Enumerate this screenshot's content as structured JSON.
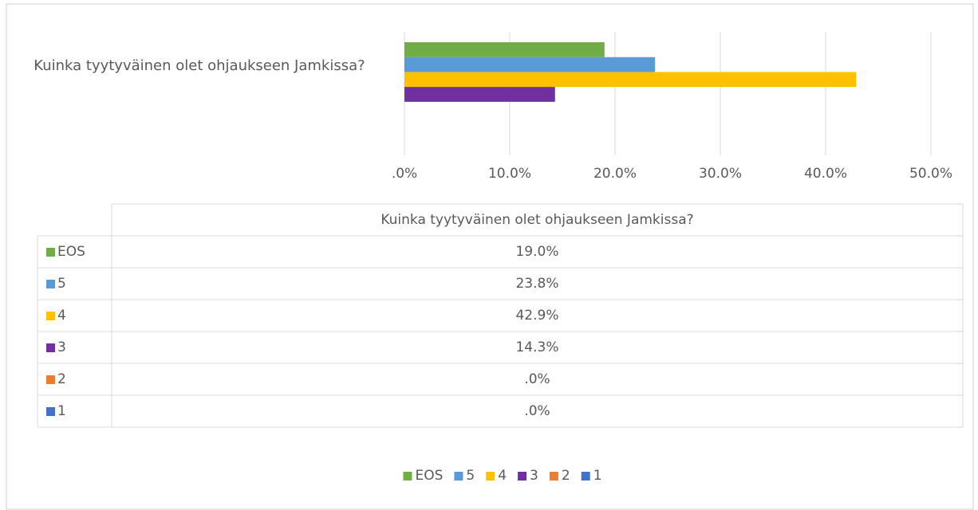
{
  "chart_data": {
    "type": "bar",
    "orientation": "horizontal",
    "categories": [
      "Kuinka tyytyväinen olet ohjaukseen Jamkissa?"
    ],
    "series": [
      {
        "name": "EOS",
        "color": "#70ad47",
        "values": [
          19.0
        ],
        "value_labels": [
          "19.0%"
        ]
      },
      {
        "name": "5",
        "color": "#5b9bd5",
        "values": [
          23.8
        ],
        "value_labels": [
          "23.8%"
        ]
      },
      {
        "name": "4",
        "color": "#ffc000",
        "values": [
          42.9
        ],
        "value_labels": [
          "42.9%"
        ]
      },
      {
        "name": "3",
        "color": "#7030a0",
        "values": [
          14.3
        ],
        "value_labels": [
          "14.3%"
        ]
      },
      {
        "name": "2",
        "color": "#ed7d31",
        "values": [
          0.0
        ],
        "value_labels": [
          ".0%"
        ]
      },
      {
        "name": "1",
        "color": "#4472c4",
        "values": [
          0.0
        ],
        "value_labels": [
          ".0%"
        ]
      }
    ],
    "xlim": [
      0,
      50
    ],
    "xticks": [
      {
        "value": 0,
        "label": ".0%"
      },
      {
        "value": 10,
        "label": "10.0%"
      },
      {
        "value": 20,
        "label": "20.0%"
      },
      {
        "value": 30,
        "label": "30.0%"
      },
      {
        "value": 40,
        "label": "40.0%"
      },
      {
        "value": 50,
        "label": "50.0%"
      }
    ],
    "grid": true,
    "legend": "bottom",
    "data_table": true
  }
}
